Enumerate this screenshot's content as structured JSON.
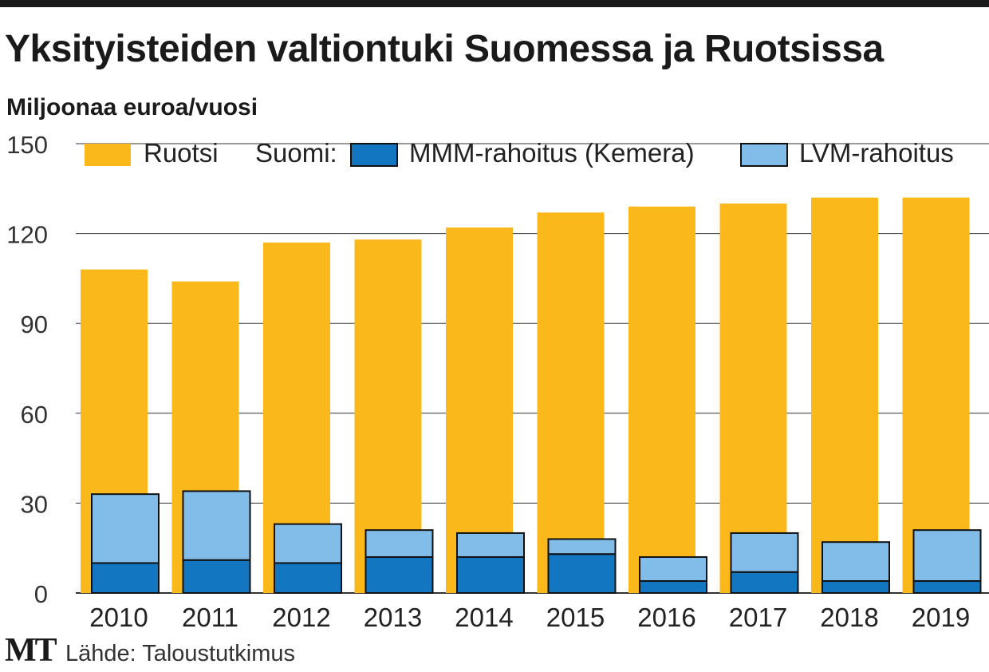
{
  "title": "Yksityisteiden valtiontuki Suomessa ja Ruotsissa",
  "subtitle": "Miljoonaa euroa/vuosi",
  "footer": {
    "logo": "MT",
    "source": "Lähde: Taloustutkimus"
  },
  "colors": {
    "ruotsi": "#FBB81B",
    "mmm": "#1276C0",
    "lvm": "#82BCE8",
    "grid": "#333333"
  },
  "chart_data": {
    "type": "bar",
    "categories": [
      "2010",
      "2011",
      "2012",
      "2013",
      "2014",
      "2015",
      "2016",
      "2017",
      "2018",
      "2019"
    ],
    "ylim": [
      0,
      150
    ],
    "yticks": [
      0,
      30,
      60,
      90,
      120,
      150
    ],
    "grid": true,
    "legend_position": "top",
    "legend_group_label": "Suomi:",
    "series": [
      {
        "name": "Ruotsi",
        "color": "#FBB81B",
        "values": [
          108,
          104,
          117,
          118,
          122,
          127,
          129,
          130,
          132,
          132
        ]
      },
      {
        "name": "MMM-rahoitus (Kemera)",
        "color": "#1276C0",
        "stack": "Suomi",
        "values": [
          10,
          11,
          10,
          12,
          12,
          13,
          4,
          7,
          4,
          4
        ]
      },
      {
        "name": "LVM-rahoitus",
        "color": "#82BCE8",
        "stack": "Suomi",
        "values": [
          23,
          23,
          13,
          9,
          8,
          5,
          8,
          13,
          13,
          17
        ]
      }
    ]
  }
}
